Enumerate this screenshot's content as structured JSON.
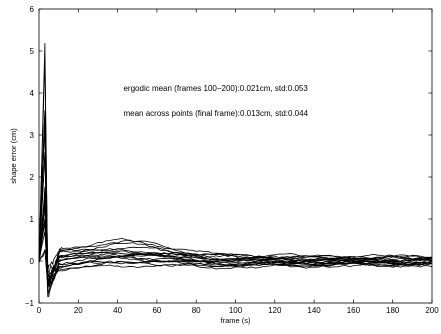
{
  "chart_data": {
    "type": "line",
    "title": "",
    "xlabel": "frame (s)",
    "ylabel": "shape error (cm)",
    "xlim": [
      0,
      200
    ],
    "ylim": [
      -1,
      6
    ],
    "xticks": [
      "0",
      "20",
      "40",
      "60",
      "80",
      "100",
      "120",
      "140",
      "160",
      "180",
      "200"
    ],
    "yticks": [
      "−1",
      "0",
      "1",
      "2",
      "3",
      "4",
      "5",
      "6"
    ],
    "grid": false,
    "legend": "none",
    "line_color": "#000000",
    "annotations": [
      {
        "text": "ergodic mean (frames 100−200):0.021cm, std:0.053",
        "x": 43,
        "y": 4.05
      },
      {
        "text": "mean across points (final frame):0.013cm, std:0.044",
        "x": 43,
        "y": 3.45
      }
    ],
    "series_summary": {
      "count": 18,
      "peak_frame": 3,
      "peak_value": 5.15,
      "min_value": -0.9,
      "settle_frame": 10,
      "settled_band": [
        -0.25,
        0.25
      ]
    }
  }
}
